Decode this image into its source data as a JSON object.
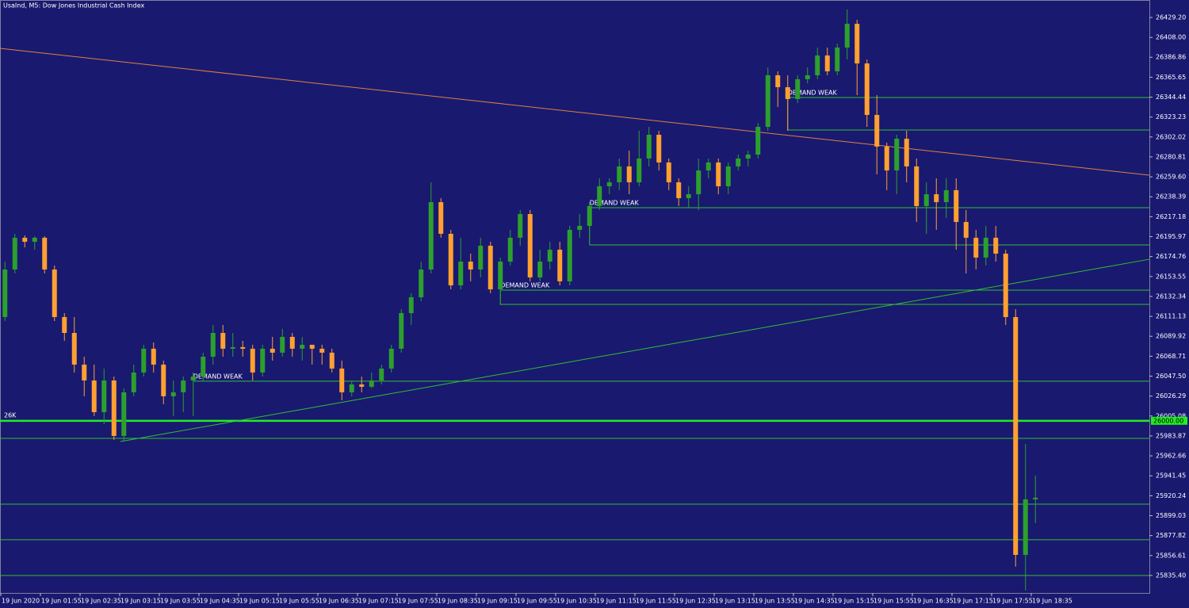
{
  "chart_data": {
    "type": "candlestick",
    "title": "UsaInd, M5:  Dow Jones Industrial Cash Index",
    "x": [
      "19 Jun 2020",
      null,
      null,
      null,
      "19 Jun 01:55",
      null,
      null,
      null,
      "19 Jun 02:35",
      null,
      null,
      null,
      "19 Jun 03:15",
      null,
      null,
      null,
      "19 Jun 03:55",
      null,
      null,
      null,
      "19 Jun 04:35",
      null,
      null,
      null,
      "19 Jun 05:15",
      null,
      null,
      null,
      "19 Jun 05:55",
      null,
      null,
      null,
      "19 Jun 06:35",
      null,
      null,
      null,
      "19 Jun 07:15",
      null,
      null,
      null,
      "19 Jun 07:55",
      null,
      null,
      null,
      "19 Jun 08:35",
      null,
      null,
      null,
      "19 Jun 09:15",
      null,
      null,
      null,
      "19 Jun 09:55",
      null,
      null,
      null,
      "19 Jun 10:35",
      null,
      null,
      null,
      "19 Jun 11:15",
      null,
      null,
      null,
      "19 Jun 11:55",
      null,
      null,
      null,
      "19 Jun 12:35",
      null,
      null,
      null,
      "19 Jun 13:15",
      null,
      null,
      null,
      "19 Jun 13:55",
      null,
      null,
      null,
      "19 Jun 14:35",
      null,
      null,
      null,
      "19 Jun 15:15",
      null,
      null,
      null,
      "19 Jun 15:55",
      null,
      null,
      null,
      "19 Jun 16:35",
      null,
      null,
      null,
      "19 Jun 17:15",
      null,
      null,
      null,
      "19 Jun 17:55",
      null,
      null,
      null,
      "19 Jun 18:35"
    ],
    "open": [
      26110.4,
      26161.0,
      26194.8,
      26190.5,
      26194.8,
      26161.0,
      26110.4,
      26093.5,
      26059.8,
      26042.9,
      26009.2,
      26042.9,
      25983.9,
      26030.3,
      26051.4,
      26076.7,
      26059.8,
      26026.1,
      26030.3,
      26042.9,
      26047.1,
      26068.2,
      26093.5,
      26076.7,
      26078.4,
      26076.7,
      26051.4,
      26076.7,
      26072.5,
      26089.3,
      26076.7,
      26080.9,
      26076.7,
      26072.5,
      26055.6,
      26030.3,
      26038.7,
      26036.2,
      26042.9,
      26055.6,
      26076.7,
      26114.6,
      26131.5,
      26161.0,
      26232.7,
      26199.0,
      26144.1,
      26169.4,
      26161.0,
      26186.3,
      26139.9,
      26169.4,
      26194.8,
      26220.0,
      26152.6,
      26169.4,
      26182.1,
      26148.4,
      26203.2,
      26207.4,
      26228.5,
      26249.6,
      26253.8,
      26270.7,
      26253.8,
      26279.1,
      26304.4,
      26274.9,
      26253.8,
      26236.9,
      26241.1,
      26266.4,
      26274.9,
      26249.6,
      26270.7,
      26279.1,
      26283.3,
      26312.8,
      26367.7,
      26355.0,
      26342.4,
      26363.5,
      26367.7,
      26388.8,
      26371.9,
      26397.2,
      26422.5,
      26380.3,
      26325.5,
      26291.8,
      26266.4,
      26300.2,
      26270.7,
      26228.5,
      26241.1,
      26232.7,
      26245.4,
      26211.6,
      26194.8,
      26173.7,
      26194.8,
      26177.9,
      26110.4,
      25857.3,
      25916.4
    ],
    "high": [
      26169.4,
      26199.0,
      26197.3,
      26196.4,
      26196.4,
      26165.2,
      26114.6,
      26110.4,
      26068.2,
      26059.8,
      26055.6,
      26047.1,
      26034.5,
      26059.8,
      26080.9,
      26083.4,
      26064.0,
      26042.9,
      26047.1,
      26051.4,
      26072.5,
      26102.0,
      26102.0,
      26093.5,
      26085.1,
      26080.9,
      26080.9,
      26089.3,
      26097.8,
      26093.5,
      26089.3,
      26080.9,
      26080.9,
      26076.7,
      26064.0,
      26042.9,
      26047.1,
      26051.4,
      26059.8,
      26080.9,
      26118.8,
      26135.7,
      26169.4,
      26253.8,
      26236.9,
      26203.2,
      26194.8,
      26177.9,
      26194.8,
      26190.5,
      26173.7,
      26203.2,
      26224.3,
      26224.3,
      26182.1,
      26190.5,
      26190.5,
      26207.4,
      26220.0,
      26232.7,
      26258.0,
      26258.0,
      26279.1,
      26287.5,
      26308.6,
      26312.8,
      26308.6,
      26279.1,
      26258.0,
      26249.6,
      26279.1,
      26279.1,
      26279.1,
      26274.9,
      26283.3,
      26287.5,
      26317.0,
      26376.1,
      26371.9,
      26367.7,
      26367.7,
      26376.1,
      26397.2,
      26397.2,
      26401.4,
      26437.7,
      26426.7,
      26384.5,
      26346.6,
      26296.0,
      26304.4,
      26308.6,
      26279.1,
      26253.8,
      26258.0,
      26258.0,
      26258.0,
      26224.3,
      26203.2,
      26207.4,
      26207.4,
      26182.1,
      26118.8,
      25975.4,
      25941.7
    ],
    "low": [
      26106.2,
      26156.8,
      26184.6,
      26182.1,
      26156.8,
      26106.2,
      26085.1,
      26051.4,
      26026.1,
      26005.0,
      25996.5,
      25979.7,
      25978.0,
      26026.1,
      26047.1,
      26051.4,
      26017.6,
      26005.0,
      26009.2,
      26005.0,
      26042.9,
      26059.8,
      26068.2,
      26068.2,
      26068.2,
      26042.9,
      26047.1,
      26064.0,
      26068.2,
      26068.2,
      26064.0,
      26059.8,
      26059.8,
      26051.4,
      26021.8,
      26026.1,
      26030.3,
      26034.5,
      26038.7,
      26051.4,
      26072.5,
      26102.0,
      26127.3,
      26156.8,
      26194.8,
      26139.9,
      26139.9,
      26148.4,
      26152.6,
      26135.7,
      26123.1,
      26165.2,
      26186.3,
      26148.4,
      26148.4,
      26161.0,
      26144.1,
      26144.1,
      26194.8,
      26194.8,
      26224.3,
      26241.1,
      26245.4,
      26241.1,
      26249.6,
      26270.7,
      26266.4,
      26245.4,
      26228.5,
      26226.8,
      26224.3,
      26258.0,
      26241.1,
      26241.1,
      26266.4,
      26270.7,
      26279.1,
      26308.6,
      26333.9,
      26308.6,
      26338.2,
      26359.2,
      26363.5,
      26367.7,
      26367.7,
      26384.5,
      26346.6,
      26312.8,
      26262.2,
      26245.4,
      26241.1,
      26253.8,
      26211.6,
      26199.0,
      26203.2,
      26215.8,
      26182.1,
      26156.8,
      26161.0,
      26165.2,
      26169.4,
      26102.0,
      25844.7,
      25819.4,
      25891.1
    ],
    "close": [
      26161.0,
      26194.8,
      26190.5,
      26194.8,
      26161.0,
      26110.4,
      26093.5,
      26059.8,
      26042.9,
      26009.2,
      26042.9,
      25983.9,
      26030.3,
      26051.4,
      26076.7,
      26059.8,
      26026.1,
      26030.3,
      26042.9,
      26047.1,
      26068.2,
      26093.5,
      26076.7,
      26078.4,
      26076.7,
      26051.4,
      26076.7,
      26072.5,
      26089.3,
      26076.7,
      26080.9,
      26076.7,
      26072.5,
      26055.6,
      26030.3,
      26038.7,
      26036.2,
      26042.9,
      26055.6,
      26076.7,
      26114.6,
      26131.5,
      26161.0,
      26232.7,
      26199.0,
      26144.1,
      26169.4,
      26161.0,
      26186.3,
      26139.9,
      26169.4,
      26194.8,
      26220.0,
      26152.6,
      26169.4,
      26182.1,
      26148.4,
      26203.2,
      26207.4,
      26228.5,
      26249.6,
      26253.8,
      26270.7,
      26253.8,
      26279.1,
      26304.4,
      26274.9,
      26253.8,
      26236.9,
      26241.1,
      26266.4,
      26274.9,
      26249.6,
      26270.7,
      26279.1,
      26283.3,
      26312.8,
      26367.7,
      26355.0,
      26342.4,
      26363.5,
      26367.7,
      26388.8,
      26371.9,
      26397.2,
      26422.5,
      26380.3,
      26325.5,
      26291.8,
      26266.4,
      26300.2,
      26270.7,
      26228.5,
      26241.1,
      26232.7,
      26245.4,
      26211.6,
      26194.8,
      26173.7,
      26194.8,
      26177.9,
      26110.4,
      25857.3,
      25916.4,
      25918.1
    ],
    "up_color": "#2ca02c",
    "down_color": "#ffa030",
    "ylim": [
      25816.8,
      26447.8
    ],
    "yticks": [
      {
        "value": 26429.2,
        "label": "26429.20"
      },
      {
        "value": 26408.0,
        "label": "26408.00"
      },
      {
        "value": 26386.86,
        "label": "26386.86"
      },
      {
        "value": 26365.65,
        "label": "26365.65"
      },
      {
        "value": 26344.44,
        "label": "26344.44"
      },
      {
        "value": 26323.23,
        "label": "26323.23"
      },
      {
        "value": 26302.02,
        "label": "26302.02"
      },
      {
        "value": 26280.81,
        "label": "26280.81"
      },
      {
        "value": 26259.6,
        "label": "26259.60"
      },
      {
        "value": 26238.39,
        "label": "26238.39"
      },
      {
        "value": 26217.18,
        "label": "26217.18"
      },
      {
        "value": 26195.97,
        "label": "26195.97"
      },
      {
        "value": 26174.76,
        "label": "26174.76"
      },
      {
        "value": 26153.55,
        "label": "26153.55"
      },
      {
        "value": 26132.34,
        "label": "26132.34"
      },
      {
        "value": 26111.13,
        "label": "26111.13"
      },
      {
        "value": 26089.92,
        "label": "26089.92"
      },
      {
        "value": 26068.71,
        "label": "26068.71"
      },
      {
        "value": 26047.5,
        "label": "26047.50"
      },
      {
        "value": 26026.29,
        "label": "26026.29"
      },
      {
        "value": 26005.08,
        "label": "26005.08"
      },
      {
        "value": 25983.87,
        "label": "25983.87"
      },
      {
        "value": 25962.66,
        "label": "25962.66"
      },
      {
        "value": 25941.45,
        "label": "25941.45"
      },
      {
        "value": 25920.24,
        "label": "25920.24"
      },
      {
        "value": 25899.03,
        "label": "25899.03"
      },
      {
        "value": 25877.82,
        "label": "25877.82"
      },
      {
        "value": 25856.61,
        "label": "25856.61"
      },
      {
        "value": 25835.4,
        "label": "25835.40"
      }
    ],
    "key_level": {
      "value": 26000,
      "label": "26K",
      "price_label": "26000.00",
      "color": "#22ee22"
    },
    "levels": [
      25981.3,
      25911.3,
      25873.4,
      25835.4
    ],
    "level_color": "#30c030",
    "zones": [
      {
        "label": "DEMAND WEAK",
        "top": 26344.0,
        "bottom": 26309.4,
        "start": 79
      },
      {
        "label": "DEMAND WEAK",
        "top": 26226.8,
        "bottom": 26187.1,
        "start": 59
      },
      {
        "label": "DEMAND WEAK",
        "top": 26139.1,
        "bottom": 26123.9,
        "start": 50
      },
      {
        "label": "DEMAND WEAK",
        "top": 26042.1,
        "start": 19
      }
    ],
    "trendlines": [
      {
        "color": "#e08040",
        "points": [
          [
            -0.5,
            26396.3
          ],
          [
            115.5,
            26261.4
          ]
        ]
      },
      {
        "color": "#30c030",
        "points": [
          [
            11.66,
            25977.9
          ],
          [
            115.5,
            26171.9
          ]
        ]
      }
    ]
  }
}
